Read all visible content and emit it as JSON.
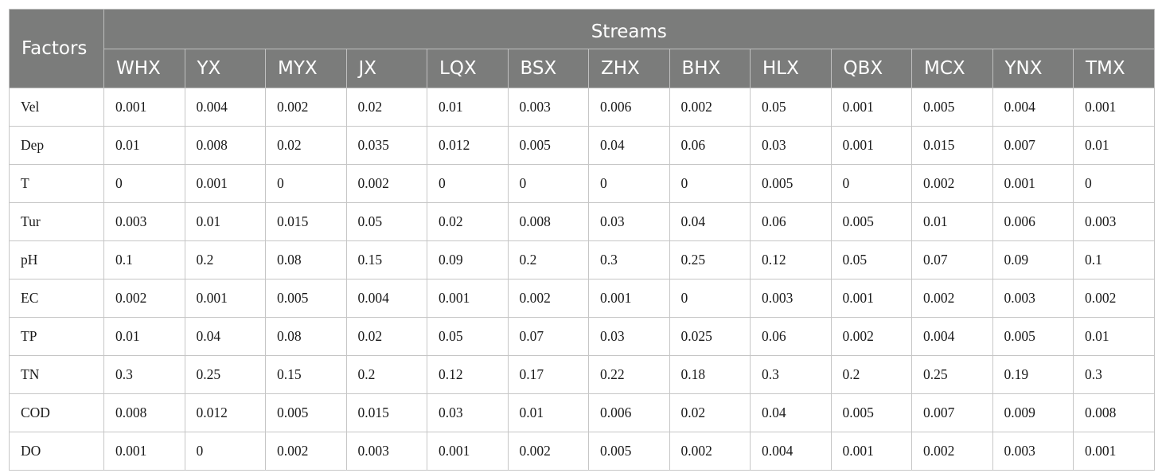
{
  "table": {
    "corner_label": "Factors",
    "group_label": "Streams",
    "columns": [
      "WHX",
      "YX",
      "MYX",
      "JX",
      "LQX",
      "BSX",
      "ZHX",
      "BHX",
      "HLX",
      "QBX",
      "MCX",
      "YNX",
      "TMX"
    ],
    "rows": [
      {
        "factor": "Vel",
        "values": [
          "0.001",
          "0.004",
          "0.002",
          "0.02",
          "0.01",
          "0.003",
          "0.006",
          "0.002",
          "0.05",
          "0.001",
          "0.005",
          "0.004",
          "0.001"
        ]
      },
      {
        "factor": "Dep",
        "values": [
          "0.01",
          "0.008",
          "0.02",
          "0.035",
          "0.012",
          "0.005",
          "0.04",
          "0.06",
          "0.03",
          "0.001",
          "0.015",
          "0.007",
          "0.01"
        ]
      },
      {
        "factor": "T",
        "values": [
          "0",
          "0.001",
          "0",
          "0.002",
          "0",
          "0",
          "0",
          "0",
          "0.005",
          "0",
          "0.002",
          "0.001",
          "0"
        ]
      },
      {
        "factor": "Tur",
        "values": [
          "0.003",
          "0.01",
          "0.015",
          "0.05",
          "0.02",
          "0.008",
          "0.03",
          "0.04",
          "0.06",
          "0.005",
          "0.01",
          "0.006",
          "0.003"
        ]
      },
      {
        "factor": "pH",
        "values": [
          "0.1",
          "0.2",
          "0.08",
          "0.15",
          "0.09",
          "0.2",
          "0.3",
          "0.25",
          "0.12",
          "0.05",
          "0.07",
          "0.09",
          "0.1"
        ]
      },
      {
        "factor": "EC",
        "values": [
          "0.002",
          "0.001",
          "0.005",
          "0.004",
          "0.001",
          "0.002",
          "0.001",
          "0",
          "0.003",
          "0.001",
          "0.002",
          "0.003",
          "0.002"
        ]
      },
      {
        "factor": "TP",
        "values": [
          "0.01",
          "0.04",
          "0.08",
          "0.02",
          "0.05",
          "0.07",
          "0.03",
          "0.025",
          "0.06",
          "0.002",
          "0.004",
          "0.005",
          "0.01"
        ]
      },
      {
        "factor": "TN",
        "values": [
          "0.3",
          "0.25",
          "0.15",
          "0.2",
          "0.12",
          "0.17",
          "0.22",
          "0.18",
          "0.3",
          "0.2",
          "0.25",
          "0.19",
          "0.3"
        ]
      },
      {
        "factor": "COD",
        "values": [
          "0.008",
          "0.012",
          "0.005",
          "0.015",
          "0.03",
          "0.01",
          "0.006",
          "0.02",
          "0.04",
          "0.005",
          "0.007",
          "0.009",
          "0.008"
        ]
      },
      {
        "factor": "DO",
        "values": [
          "0.001",
          "0",
          "0.002",
          "0.003",
          "0.001",
          "0.002",
          "0.005",
          "0.002",
          "0.004",
          "0.001",
          "0.002",
          "0.003",
          "0.001"
        ]
      }
    ]
  },
  "colors": {
    "header_bg": "#7b7c7b",
    "header_text": "#ffffff",
    "grid_line": "#c6c6c6"
  }
}
